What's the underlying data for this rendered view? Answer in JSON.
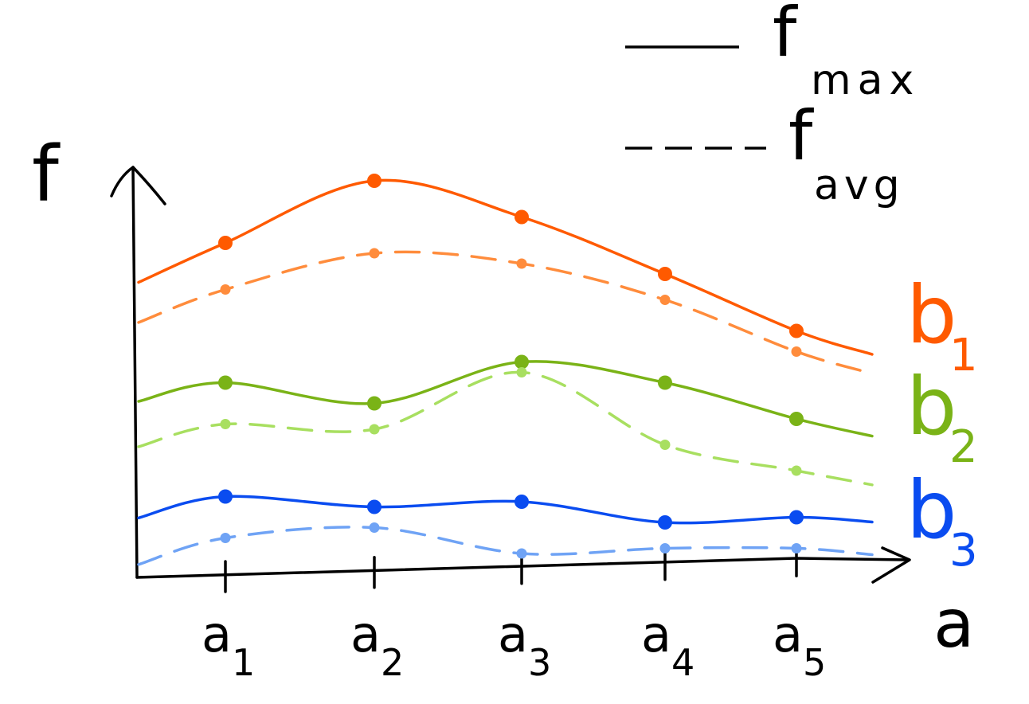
{
  "chart_data": {
    "type": "line",
    "xlabel": "a",
    "ylabel": "f",
    "categories": [
      "a",
      "a",
      "a",
      "a",
      "a"
    ],
    "category_subscripts": [
      "1",
      "2",
      "3",
      "4",
      "5"
    ],
    "groups": [
      {
        "name": "b",
        "subscript": "1",
        "color_max": "#ff5a00",
        "color_avg": "#ff8c3c",
        "max": [
          0.7,
          0.82,
          0.75,
          0.64,
          0.53
        ],
        "avg": [
          0.61,
          0.68,
          0.66,
          0.59,
          0.49
        ]
      },
      {
        "name": "b",
        "subscript": "2",
        "color_max": "#7ab317",
        "color_avg": "#a8df60",
        "max": [
          0.43,
          0.39,
          0.47,
          0.43,
          0.36
        ],
        "avg": [
          0.35,
          0.34,
          0.45,
          0.31,
          0.26
        ]
      },
      {
        "name": "b",
        "subscript": "3",
        "color_max": "#0a4cf0",
        "color_avg": "#6fa3f5",
        "max": [
          0.21,
          0.19,
          0.2,
          0.16,
          0.17
        ],
        "avg": [
          0.13,
          0.15,
          0.1,
          0.11,
          0.11
        ]
      }
    ],
    "legend": {
      "entries": [
        {
          "style": "solid",
          "label": "f",
          "subscript": "max"
        },
        {
          "style": "dashed",
          "label": "f",
          "subscript": "avg"
        }
      ],
      "placement": "top-right"
    },
    "grid": false
  }
}
